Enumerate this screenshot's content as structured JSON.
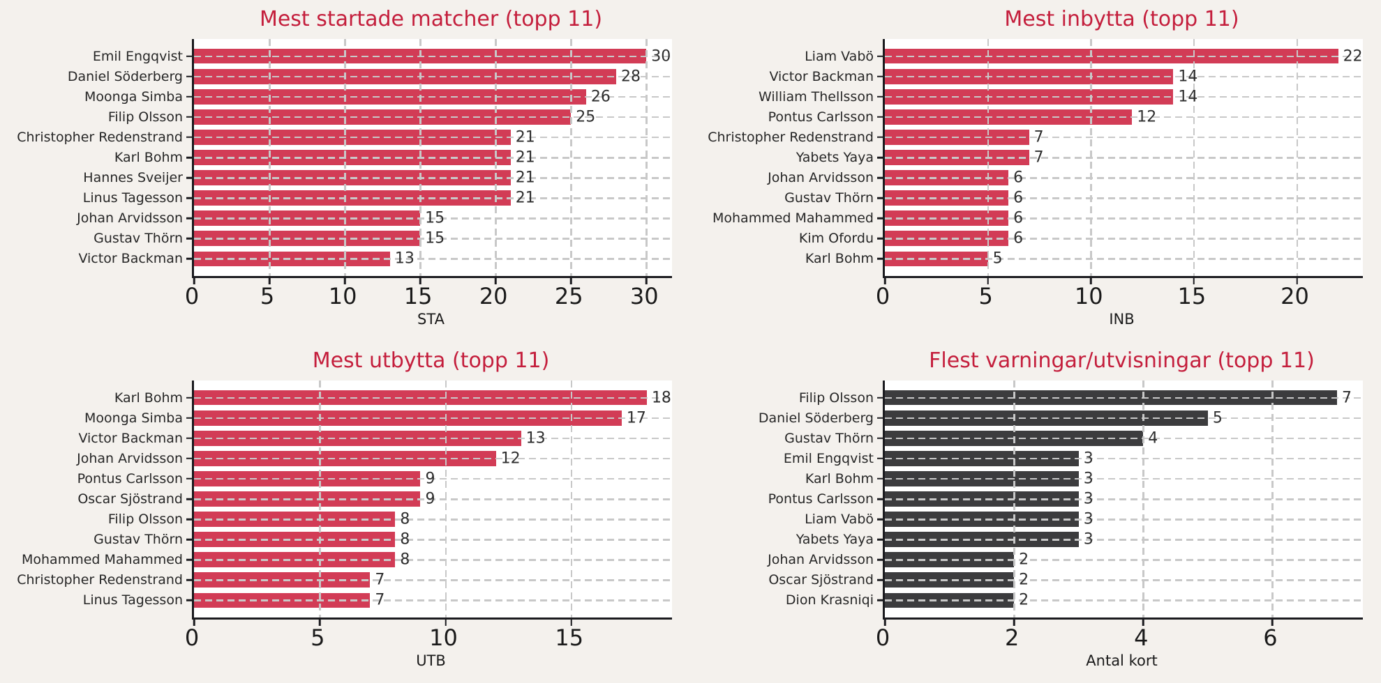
{
  "style": {
    "figure_bg": "#f4f1ed",
    "plot_bg": "#ffffff",
    "title_color": "#c41e3c",
    "bar_red": "#d23c56",
    "bar_dark": "#3c3c3e",
    "grid_color": "#c8c8c8",
    "axis_color": "#1b1b1f",
    "text_color": "#262626"
  },
  "chart_data": [
    {
      "type": "bar",
      "orientation": "horizontal",
      "title": "Mest startade matcher (topp 11)",
      "xlabel": "STA",
      "categories": [
        "Emil Engqvist",
        "Daniel Söderberg",
        "Moonga Simba",
        "Filip Olsson",
        "Christopher Redenstrand",
        "Karl Bohm",
        "Hannes Sveijer",
        "Linus Tagesson",
        "Johan Arvidsson",
        "Gustav Thörn",
        "Victor Backman"
      ],
      "values": [
        30,
        28,
        26,
        25,
        21,
        21,
        21,
        21,
        15,
        15,
        13
      ],
      "xticks": [
        0,
        5,
        10,
        15,
        20,
        25,
        30
      ],
      "xlim": [
        0,
        31.7
      ],
      "bar_color": "#d23c56",
      "grid": true,
      "value_labels": true
    },
    {
      "type": "bar",
      "orientation": "horizontal",
      "title": "Mest inbytta (topp 11)",
      "xlabel": "INB",
      "categories": [
        "Liam Vabö",
        "Victor Backman",
        "William Thellsson",
        "Pontus Carlsson",
        "Christopher Redenstrand",
        "Yabets Yaya",
        "Johan Arvidsson",
        "Gustav Thörn",
        "Mohammed Mahammed",
        "Kim Ofordu",
        "Karl Bohm"
      ],
      "values": [
        22,
        14,
        14,
        12,
        7,
        7,
        6,
        6,
        6,
        6,
        5
      ],
      "xticks": [
        0,
        5,
        10,
        15,
        20
      ],
      "xlim": [
        0,
        23.2
      ],
      "bar_color": "#d23c56",
      "grid": true,
      "value_labels": true
    },
    {
      "type": "bar",
      "orientation": "horizontal",
      "title": "Mest utbytta (topp 11)",
      "xlabel": "UTB",
      "categories": [
        "Karl Bohm",
        "Moonga Simba",
        "Victor Backman",
        "Johan Arvidsson",
        "Pontus Carlsson",
        "Oscar Sjöstrand",
        "Filip Olsson",
        "Gustav Thörn",
        "Mohammed Mahammed",
        "Christopher Redenstrand",
        "Linus Tagesson"
      ],
      "values": [
        18,
        17,
        13,
        12,
        9,
        9,
        8,
        8,
        8,
        7,
        7
      ],
      "xticks": [
        0,
        5,
        10,
        15
      ],
      "xlim": [
        0,
        19.0
      ],
      "bar_color": "#d23c56",
      "grid": true,
      "value_labels": true
    },
    {
      "type": "bar",
      "orientation": "horizontal",
      "title": "Flest varningar/utvisningar (topp 11)",
      "xlabel": "Antal kort",
      "categories": [
        "Filip Olsson",
        "Daniel Söderberg",
        "Gustav Thörn",
        "Emil Engqvist",
        "Karl Bohm",
        "Pontus Carlsson",
        "Liam Vabö",
        "Yabets Yaya",
        "Johan Arvidsson",
        "Oscar Sjöstrand",
        "Dion Krasniqi"
      ],
      "values": [
        7,
        5,
        4,
        3,
        3,
        3,
        3,
        3,
        2,
        2,
        2
      ],
      "xticks": [
        0,
        2,
        4,
        6
      ],
      "xlim": [
        0,
        7.4
      ],
      "bar_color": "#3c3c3e",
      "grid": true,
      "value_labels": true
    }
  ]
}
